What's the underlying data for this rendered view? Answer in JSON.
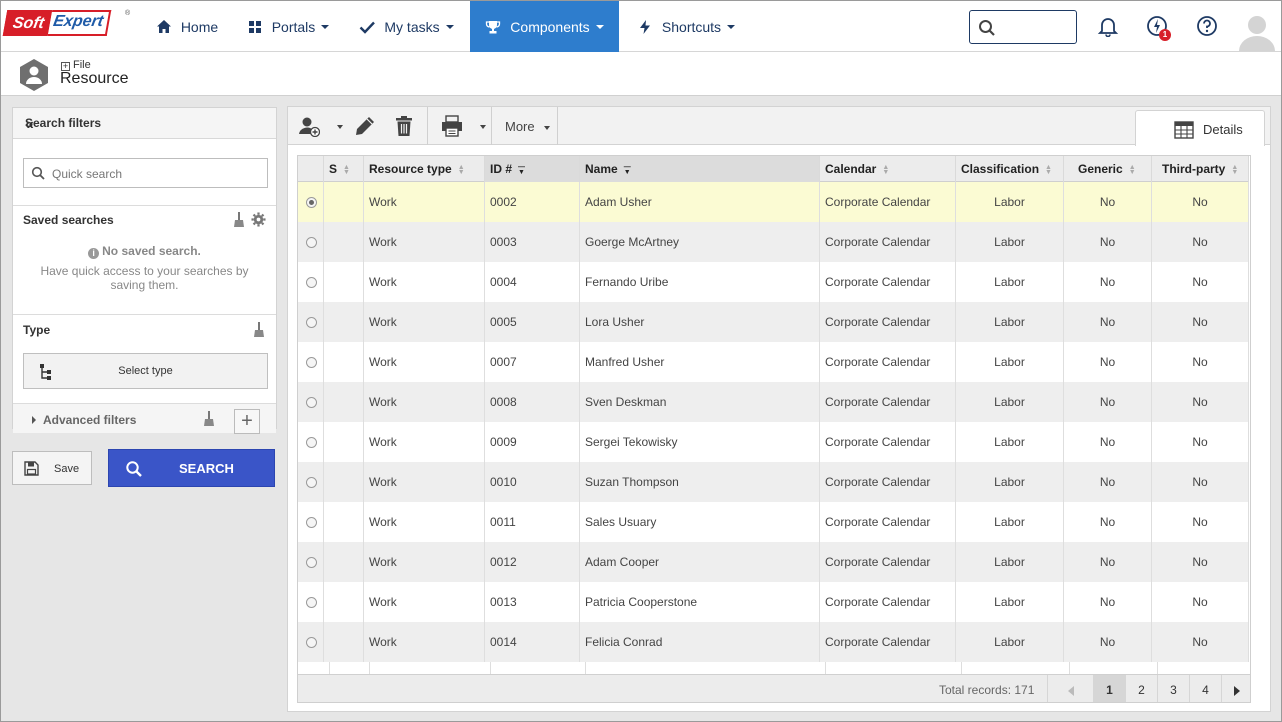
{
  "logo": {
    "part1": "Soft",
    "part2": "Expert",
    "reg": "®"
  },
  "nav": [
    {
      "label": "Home",
      "icon": "home-icon"
    },
    {
      "label": "Portals",
      "icon": "grid-icon"
    },
    {
      "label": "My tasks",
      "icon": "check-icon"
    },
    {
      "label": "Components",
      "icon": "trophy-icon",
      "active": true
    },
    {
      "label": "Shortcuts",
      "icon": "bolt-icon"
    }
  ],
  "header": {
    "search_placeholder": "",
    "notification_count": "1"
  },
  "page": {
    "breadcrumb": "File",
    "title": "Resource"
  },
  "filters": {
    "title": "Search filters",
    "quick_search_placeholder": "Quick search",
    "saved_searches_label": "Saved searches",
    "no_saved_title": "No saved search.",
    "no_saved_hint_1": "Have quick access to your searches by",
    "no_saved_hint_2": "saving them.",
    "type_label": "Type",
    "select_type": "Select type",
    "advanced_filters": "Advanced filters",
    "save_label": "Save",
    "search_label": "SEARCH"
  },
  "toolbar": {
    "more_label": "More",
    "details_tab": "Details"
  },
  "grid": {
    "columns": [
      {
        "label": ""
      },
      {
        "label": "S"
      },
      {
        "label": "Resource type"
      },
      {
        "label": "ID #",
        "sort": "desc"
      },
      {
        "label": "Name",
        "sort": "desc"
      },
      {
        "label": "Calendar"
      },
      {
        "label": "Classification"
      },
      {
        "label": "Generic"
      },
      {
        "label": "Third-party"
      }
    ],
    "rows": [
      {
        "type": "Work",
        "id": "0002",
        "name": "Adam Usher",
        "calendar": "Corporate Calendar",
        "classification": "Labor",
        "generic": "No",
        "third_party": "No",
        "selected": true
      },
      {
        "type": "Work",
        "id": "0003",
        "name": "Goerge McArtney",
        "calendar": "Corporate Calendar",
        "classification": "Labor",
        "generic": "No",
        "third_party": "No"
      },
      {
        "type": "Work",
        "id": "0004",
        "name": "Fernando Uribe",
        "calendar": "Corporate Calendar",
        "classification": "Labor",
        "generic": "No",
        "third_party": "No"
      },
      {
        "type": "Work",
        "id": "0005",
        "name": "Lora Usher",
        "calendar": "Corporate Calendar",
        "classification": "Labor",
        "generic": "No",
        "third_party": "No"
      },
      {
        "type": "Work",
        "id": "0007",
        "name": "Manfred Usher",
        "calendar": "Corporate Calendar",
        "classification": "Labor",
        "generic": "No",
        "third_party": "No"
      },
      {
        "type": "Work",
        "id": "0008",
        "name": "Sven Deskman",
        "calendar": "Corporate Calendar",
        "classification": "Labor",
        "generic": "No",
        "third_party": "No"
      },
      {
        "type": "Work",
        "id": "0009",
        "name": "Sergei Tekowisky",
        "calendar": "Corporate Calendar",
        "classification": "Labor",
        "generic": "No",
        "third_party": "No"
      },
      {
        "type": "Work",
        "id": "0010",
        "name": "Suzan Thompson",
        "calendar": "Corporate Calendar",
        "classification": "Labor",
        "generic": "No",
        "third_party": "No"
      },
      {
        "type": "Work",
        "id": "0011",
        "name": "Sales Usuary",
        "calendar": "Corporate Calendar",
        "classification": "Labor",
        "generic": "No",
        "third_party": "No"
      },
      {
        "type": "Work",
        "id": "0012",
        "name": "Adam Cooper",
        "calendar": "Corporate Calendar",
        "classification": "Labor",
        "generic": "No",
        "third_party": "No"
      },
      {
        "type": "Work",
        "id": "0013",
        "name": "Patricia Cooperstone",
        "calendar": "Corporate Calendar",
        "classification": "Labor",
        "generic": "No",
        "third_party": "No"
      },
      {
        "type": "Work",
        "id": "0014",
        "name": "Felicia Conrad",
        "calendar": "Corporate Calendar",
        "classification": "Labor",
        "generic": "No",
        "third_party": "No"
      }
    ],
    "total_records": "Total records: 171",
    "pages": [
      "1",
      "2",
      "3",
      "4"
    ],
    "current_page": "1"
  },
  "colors": {
    "accent": "#2e7dcd",
    "brand_red": "#d71e28",
    "search_button": "#3a55c8",
    "selected_row": "#fbfbd3"
  }
}
